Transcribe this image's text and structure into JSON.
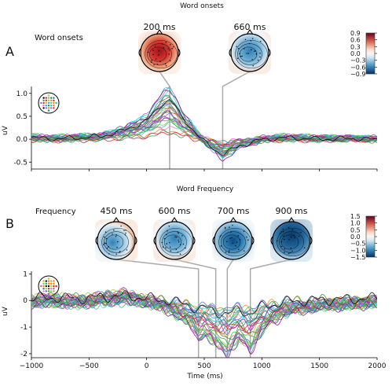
{
  "panels": [
    {
      "letter": "A",
      "title": "Word onsets",
      "label": "Word onsets",
      "topomaps": [
        {
          "time_label": "200 ms",
          "time_ms": 200,
          "pattern": "red"
        },
        {
          "time_label": "660 ms",
          "time_ms": 660,
          "pattern": "blue-center"
        }
      ],
      "colorbar": {
        "ticks": [
          "0.9",
          "0.6",
          "0.3",
          "0.0",
          "−0.3",
          "−0.6",
          "−0.9"
        ],
        "min": -0.9,
        "max": 0.9
      }
    },
    {
      "letter": "B",
      "title": "Word Frequency",
      "label": "Frequency",
      "topomaps": [
        {
          "time_label": "450 ms",
          "time_ms": 450,
          "pattern": "blue-left"
        },
        {
          "time_label": "600 ms",
          "time_ms": 600,
          "pattern": "blue-center"
        },
        {
          "time_label": "700 ms",
          "time_ms": 700,
          "pattern": "blue-strong"
        },
        {
          "time_label": "900 ms",
          "time_ms": 900,
          "pattern": "blue-top"
        }
      ],
      "colorbar": {
        "ticks": [
          "1.5",
          "1.0",
          "0.5",
          "0.0",
          "−0.5",
          "−1.0",
          "−1.5"
        ],
        "min": -1.5,
        "max": 1.5
      }
    }
  ],
  "chart_data": [
    {
      "type": "line",
      "title": "Word onsets",
      "xlabel": "",
      "ylabel": "uV",
      "xlim": [
        -1000,
        2000
      ],
      "ylim": [
        -0.65,
        1.15
      ],
      "yticks": [
        1.0,
        0.5,
        0.0,
        -0.5
      ],
      "ytick_labels": [
        "1.0",
        "0.5",
        "0.0",
        "-0.5"
      ],
      "n_channels": 32,
      "series": [
        {
          "values_x": [
            -1000,
            -800,
            -600,
            -400,
            -200,
            0,
            100,
            150,
            200,
            250,
            300,
            400,
            500,
            600,
            660,
            700,
            800,
            1000,
            1200,
            1500,
            1800,
            2000
          ],
          "values_y": [
            0.05,
            0.02,
            0.05,
            0.08,
            0.22,
            0.45,
            0.75,
            0.9,
            0.95,
            0.8,
            0.55,
            0.25,
            -0.05,
            -0.25,
            -0.35,
            -0.3,
            -0.15,
            0.0,
            0.05,
            0.02,
            0.03,
            0.0
          ]
        }
      ]
    },
    {
      "type": "line",
      "title": "Word Frequency",
      "xlabel": "Time (ms)",
      "ylabel": "uV",
      "xlim": [
        -1000,
        2000
      ],
      "ylim": [
        -2.15,
        1.1
      ],
      "yticks": [
        1,
        0,
        -1,
        -2
      ],
      "ytick_labels": [
        "1",
        "0",
        "-1",
        "-2"
      ],
      "xticks": [
        -1000,
        -500,
        0,
        500,
        1000,
        1500,
        2000
      ],
      "xtick_labels": [
        "−1000",
        "−500",
        "0",
        "500",
        "1000",
        "1500",
        "2000"
      ],
      "n_channels": 32,
      "series": [
        {
          "values_x": [
            -1000,
            -800,
            -600,
            -400,
            -200,
            0,
            200,
            400,
            450,
            500,
            600,
            700,
            800,
            900,
            1000,
            1200,
            1500,
            1800,
            2000
          ],
          "values_y": [
            0.0,
            0.05,
            -0.05,
            0.1,
            0.25,
            0.0,
            -0.3,
            -0.9,
            -1.3,
            -1.1,
            -1.5,
            -1.8,
            -1.3,
            -1.7,
            -1.0,
            -0.4,
            -0.2,
            -0.1,
            0.0
          ]
        }
      ]
    }
  ],
  "colors": {
    "connector": "#aaaaaa",
    "red": "#c81d25",
    "blue": "#1f5f8b"
  }
}
